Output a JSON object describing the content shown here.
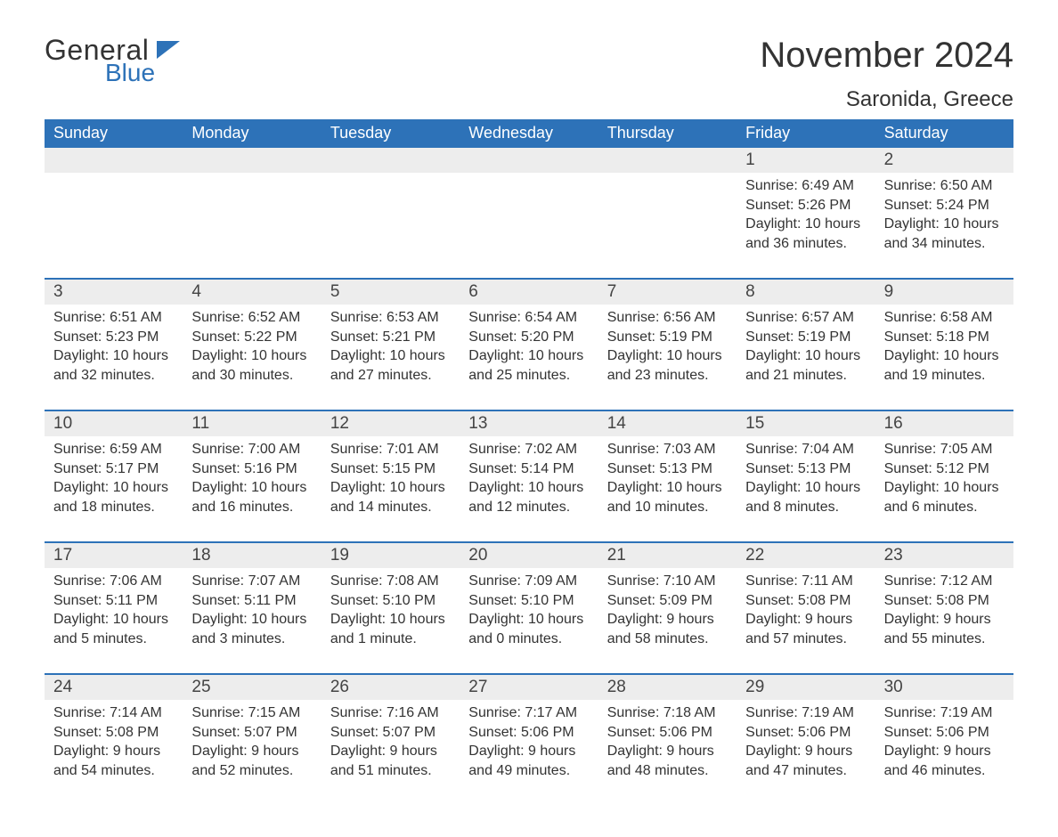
{
  "logo": {
    "text_general": "General",
    "text_blue": "Blue",
    "general_color": "#333333",
    "blue_color": "#2d72b8",
    "flag_color": "#2d72b8"
  },
  "header": {
    "month_title": "November 2024",
    "location": "Saronida, Greece"
  },
  "colors": {
    "header_bg": "#2d72b8",
    "header_text": "#ffffff",
    "week_border": "#2d72b8",
    "daynum_bg": "#ededed",
    "body_text": "#333333",
    "page_bg": "#ffffff"
  },
  "typography": {
    "month_title_fontsize": 40,
    "location_fontsize": 24,
    "dow_fontsize": 18,
    "daynum_fontsize": 19,
    "body_fontsize": 16
  },
  "days_of_week": [
    "Sunday",
    "Monday",
    "Tuesday",
    "Wednesday",
    "Thursday",
    "Friday",
    "Saturday"
  ],
  "weeks": [
    [
      null,
      null,
      null,
      null,
      null,
      {
        "n": "1",
        "sunrise": "Sunrise: 6:49 AM",
        "sunset": "Sunset: 5:26 PM",
        "daylight": "Daylight: 10 hours and 36 minutes."
      },
      {
        "n": "2",
        "sunrise": "Sunrise: 6:50 AM",
        "sunset": "Sunset: 5:24 PM",
        "daylight": "Daylight: 10 hours and 34 minutes."
      }
    ],
    [
      {
        "n": "3",
        "sunrise": "Sunrise: 6:51 AM",
        "sunset": "Sunset: 5:23 PM",
        "daylight": "Daylight: 10 hours and 32 minutes."
      },
      {
        "n": "4",
        "sunrise": "Sunrise: 6:52 AM",
        "sunset": "Sunset: 5:22 PM",
        "daylight": "Daylight: 10 hours and 30 minutes."
      },
      {
        "n": "5",
        "sunrise": "Sunrise: 6:53 AM",
        "sunset": "Sunset: 5:21 PM",
        "daylight": "Daylight: 10 hours and 27 minutes."
      },
      {
        "n": "6",
        "sunrise": "Sunrise: 6:54 AM",
        "sunset": "Sunset: 5:20 PM",
        "daylight": "Daylight: 10 hours and 25 minutes."
      },
      {
        "n": "7",
        "sunrise": "Sunrise: 6:56 AM",
        "sunset": "Sunset: 5:19 PM",
        "daylight": "Daylight: 10 hours and 23 minutes."
      },
      {
        "n": "8",
        "sunrise": "Sunrise: 6:57 AM",
        "sunset": "Sunset: 5:19 PM",
        "daylight": "Daylight: 10 hours and 21 minutes."
      },
      {
        "n": "9",
        "sunrise": "Sunrise: 6:58 AM",
        "sunset": "Sunset: 5:18 PM",
        "daylight": "Daylight: 10 hours and 19 minutes."
      }
    ],
    [
      {
        "n": "10",
        "sunrise": "Sunrise: 6:59 AM",
        "sunset": "Sunset: 5:17 PM",
        "daylight": "Daylight: 10 hours and 18 minutes."
      },
      {
        "n": "11",
        "sunrise": "Sunrise: 7:00 AM",
        "sunset": "Sunset: 5:16 PM",
        "daylight": "Daylight: 10 hours and 16 minutes."
      },
      {
        "n": "12",
        "sunrise": "Sunrise: 7:01 AM",
        "sunset": "Sunset: 5:15 PM",
        "daylight": "Daylight: 10 hours and 14 minutes."
      },
      {
        "n": "13",
        "sunrise": "Sunrise: 7:02 AM",
        "sunset": "Sunset: 5:14 PM",
        "daylight": "Daylight: 10 hours and 12 minutes."
      },
      {
        "n": "14",
        "sunrise": "Sunrise: 7:03 AM",
        "sunset": "Sunset: 5:13 PM",
        "daylight": "Daylight: 10 hours and 10 minutes."
      },
      {
        "n": "15",
        "sunrise": "Sunrise: 7:04 AM",
        "sunset": "Sunset: 5:13 PM",
        "daylight": "Daylight: 10 hours and 8 minutes."
      },
      {
        "n": "16",
        "sunrise": "Sunrise: 7:05 AM",
        "sunset": "Sunset: 5:12 PM",
        "daylight": "Daylight: 10 hours and 6 minutes."
      }
    ],
    [
      {
        "n": "17",
        "sunrise": "Sunrise: 7:06 AM",
        "sunset": "Sunset: 5:11 PM",
        "daylight": "Daylight: 10 hours and 5 minutes."
      },
      {
        "n": "18",
        "sunrise": "Sunrise: 7:07 AM",
        "sunset": "Sunset: 5:11 PM",
        "daylight": "Daylight: 10 hours and 3 minutes."
      },
      {
        "n": "19",
        "sunrise": "Sunrise: 7:08 AM",
        "sunset": "Sunset: 5:10 PM",
        "daylight": "Daylight: 10 hours and 1 minute."
      },
      {
        "n": "20",
        "sunrise": "Sunrise: 7:09 AM",
        "sunset": "Sunset: 5:10 PM",
        "daylight": "Daylight: 10 hours and 0 minutes."
      },
      {
        "n": "21",
        "sunrise": "Sunrise: 7:10 AM",
        "sunset": "Sunset: 5:09 PM",
        "daylight": "Daylight: 9 hours and 58 minutes."
      },
      {
        "n": "22",
        "sunrise": "Sunrise: 7:11 AM",
        "sunset": "Sunset: 5:08 PM",
        "daylight": "Daylight: 9 hours and 57 minutes."
      },
      {
        "n": "23",
        "sunrise": "Sunrise: 7:12 AM",
        "sunset": "Sunset: 5:08 PM",
        "daylight": "Daylight: 9 hours and 55 minutes."
      }
    ],
    [
      {
        "n": "24",
        "sunrise": "Sunrise: 7:14 AM",
        "sunset": "Sunset: 5:08 PM",
        "daylight": "Daylight: 9 hours and 54 minutes."
      },
      {
        "n": "25",
        "sunrise": "Sunrise: 7:15 AM",
        "sunset": "Sunset: 5:07 PM",
        "daylight": "Daylight: 9 hours and 52 minutes."
      },
      {
        "n": "26",
        "sunrise": "Sunrise: 7:16 AM",
        "sunset": "Sunset: 5:07 PM",
        "daylight": "Daylight: 9 hours and 51 minutes."
      },
      {
        "n": "27",
        "sunrise": "Sunrise: 7:17 AM",
        "sunset": "Sunset: 5:06 PM",
        "daylight": "Daylight: 9 hours and 49 minutes."
      },
      {
        "n": "28",
        "sunrise": "Sunrise: 7:18 AM",
        "sunset": "Sunset: 5:06 PM",
        "daylight": "Daylight: 9 hours and 48 minutes."
      },
      {
        "n": "29",
        "sunrise": "Sunrise: 7:19 AM",
        "sunset": "Sunset: 5:06 PM",
        "daylight": "Daylight: 9 hours and 47 minutes."
      },
      {
        "n": "30",
        "sunrise": "Sunrise: 7:19 AM",
        "sunset": "Sunset: 5:06 PM",
        "daylight": "Daylight: 9 hours and 46 minutes."
      }
    ]
  ]
}
